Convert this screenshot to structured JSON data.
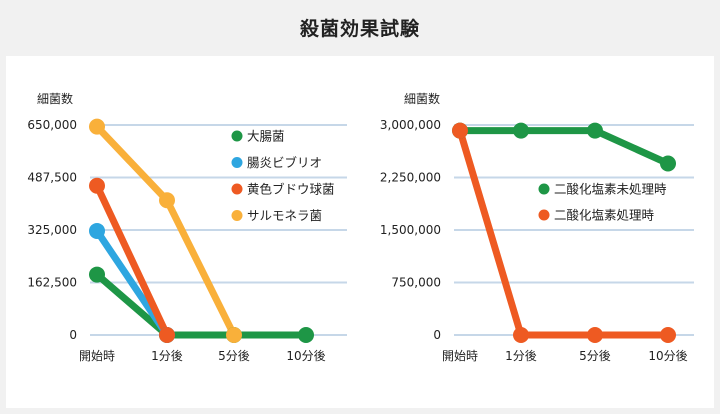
{
  "page": {
    "title": "殺菌効果試験"
  },
  "chart_data": [
    {
      "type": "line",
      "ylabel": "細菌数",
      "ylim": [
        0,
        650000
      ],
      "yticks": [
        "650,000",
        "487,500",
        "325,000",
        "162,500",
        "0"
      ],
      "ytick_values": [
        650000,
        487500,
        325000,
        162500,
        0
      ],
      "categories": [
        "開始時",
        "1分後",
        "5分後",
        "10分後"
      ],
      "grid": true,
      "legend_position": "right",
      "series": [
        {
          "name": "大腸菌",
          "color": "#1e9646",
          "values": [
            187000,
            0,
            0,
            0
          ]
        },
        {
          "name": "腸炎ビブリオ",
          "color": "#2ea6e0",
          "values": [
            322000,
            0,
            null,
            null
          ]
        },
        {
          "name": "黄色ブドウ球菌",
          "color": "#ee5a22",
          "values": [
            462000,
            0,
            null,
            null
          ]
        },
        {
          "name": "サルモネラ菌",
          "color": "#f9b03a",
          "values": [
            645000,
            417000,
            0,
            null
          ]
        }
      ]
    },
    {
      "type": "line",
      "ylabel": "細菌数",
      "ylim": [
        0,
        3000000
      ],
      "yticks": [
        "3,000,000",
        "2,250,000",
        "1,500,000",
        "750,000",
        "0"
      ],
      "ytick_values": [
        3000000,
        2250000,
        1500000,
        750000,
        0
      ],
      "categories": [
        "開始時",
        "1分後",
        "5分後",
        "10分後"
      ],
      "grid": true,
      "legend_position": "right",
      "series": [
        {
          "name": "二酸化塩素未処理時",
          "color": "#1e9646",
          "values": [
            2920000,
            2920000,
            2920000,
            2450000
          ]
        },
        {
          "name": "二酸化塩素処理時",
          "color": "#ee5a22",
          "values": [
            2920000,
            0,
            0,
            0
          ]
        }
      ]
    }
  ]
}
